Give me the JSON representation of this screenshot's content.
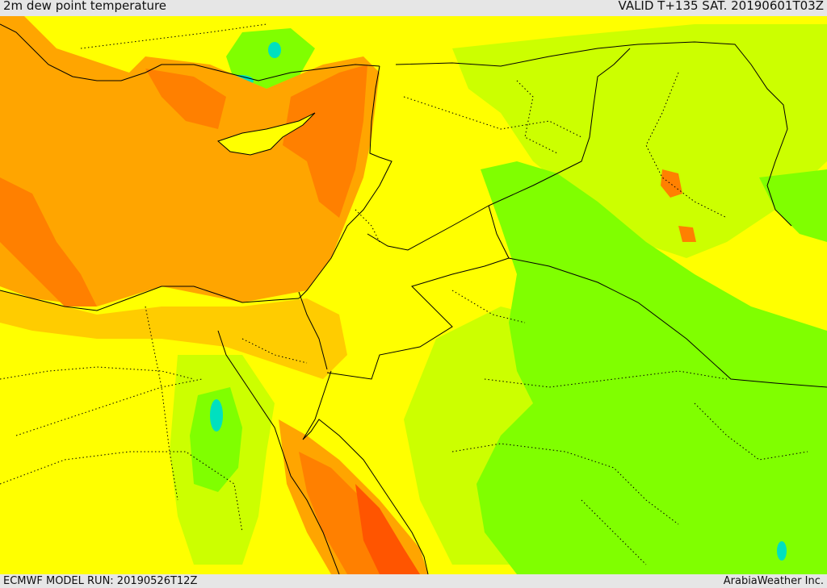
{
  "header": {
    "title": "2m dew point temperature",
    "valid": "VALID T+135 SAT. 20190601T03Z"
  },
  "footer": {
    "model_run": "ECMWF MODEL RUN: 20190526T12Z",
    "credit": "ArabiaWeather Inc."
  },
  "colors": {
    "yellow": "#ffff00",
    "yellow_green": "#ccff00",
    "green": "#80ff00",
    "light_orange": "#ffcc00",
    "orange": "#ffa500",
    "dark_orange": "#ff8000",
    "red_orange": "#ff5500",
    "cyan": "#00e0c0",
    "border": "#000000"
  }
}
